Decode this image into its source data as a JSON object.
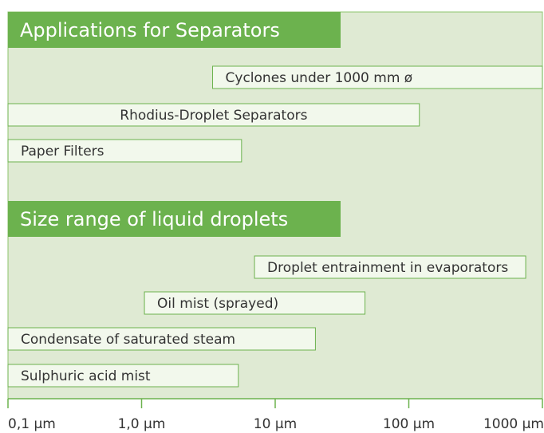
{
  "chart_data": {
    "type": "range",
    "log_x": true,
    "xlim": [
      0.1,
      1000
    ],
    "xticks": [
      {
        "value": 0.1,
        "label": "0,1 µm"
      },
      {
        "value": 1,
        "label": "1,0 µm"
      },
      {
        "value": 10,
        "label": "10 µm"
      },
      {
        "value": 100,
        "label": "100 µm"
      },
      {
        "value": 1000,
        "label": "1000 µm"
      }
    ],
    "color": "#6cb24e",
    "groups": [
      {
        "title": "Applications for Separators",
        "bars": [
          {
            "label": "Cyclones under 1000 mm ø",
            "start": 3.4,
            "end": 1000
          },
          {
            "label": "Rhodius-Droplet Separators",
            "start": 0.1,
            "end": 120,
            "align": "center"
          },
          {
            "label": "Paper Filters",
            "start": 0.1,
            "end": 5.6
          }
        ]
      },
      {
        "title": "Size range of liquid droplets",
        "bars": [
          {
            "label": "Droplet entrainment in evaporators",
            "start": 7,
            "end": 750
          },
          {
            "label": "Oil mist (sprayed)",
            "start": 1.05,
            "end": 47
          },
          {
            "label": "Condensate of saturated steam",
            "start": 0.1,
            "end": 20
          },
          {
            "label": "Sulphuric acid mist",
            "start": 0.1,
            "end": 5.3
          }
        ]
      }
    ]
  }
}
